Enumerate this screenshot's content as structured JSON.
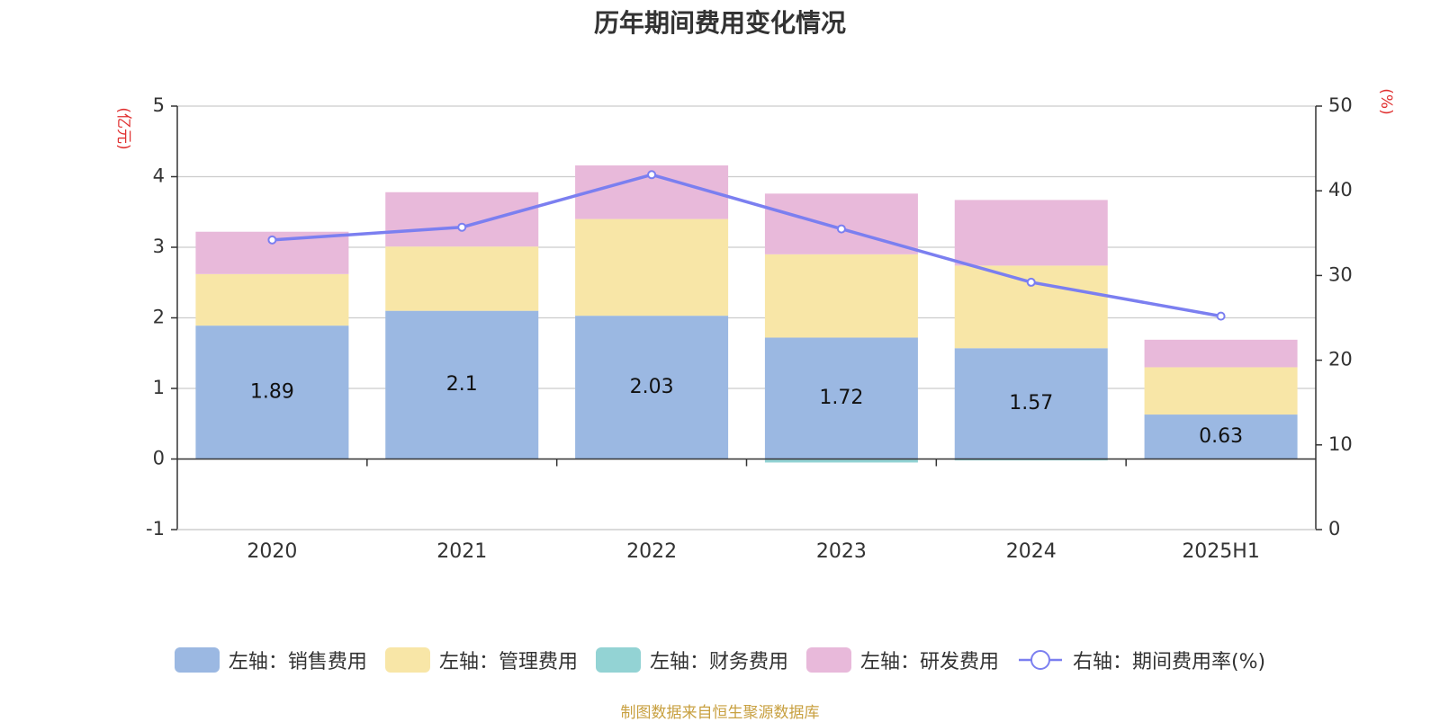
{
  "chart_data": {
    "type": "bar",
    "title": "历年期间费用变化情况",
    "categories": [
      "2020",
      "2021",
      "2022",
      "2023",
      "2024",
      "2025H1"
    ],
    "left_axis": {
      "unit_label": "(亿元)",
      "ylim": [
        -1,
        5
      ],
      "ticks": [
        "5",
        "4",
        "3",
        "2",
        "1",
        "0",
        "-1"
      ]
    },
    "right_axis": {
      "unit_label": "(%)",
      "ylim": [
        0,
        50
      ],
      "ticks": [
        "50",
        "40",
        "30",
        "20",
        "10",
        "0"
      ]
    },
    "series": [
      {
        "name": "左轴：销售费用",
        "type": "bar",
        "axis": "left",
        "color": "#9bb8e2",
        "values": [
          1.89,
          2.1,
          2.03,
          1.72,
          1.57,
          0.63
        ],
        "labels": [
          "1.89",
          "2.1",
          "2.03",
          "1.72",
          "1.57",
          "0.63"
        ]
      },
      {
        "name": "左轴：管理费用",
        "type": "bar",
        "axis": "left",
        "color": "#f8e6a7",
        "values": [
          0.73,
          0.91,
          1.37,
          1.18,
          1.17,
          0.67
        ]
      },
      {
        "name": "左轴：财务费用",
        "type": "bar",
        "axis": "left",
        "color": "#93d3d4",
        "values": [
          0.0,
          0.0,
          0.0,
          -0.05,
          -0.02,
          0.0
        ]
      },
      {
        "name": "左轴：研发费用",
        "type": "bar",
        "axis": "left",
        "color": "#e8b9da",
        "values": [
          0.6,
          0.77,
          0.76,
          0.86,
          0.93,
          0.39
        ]
      },
      {
        "name": "右轴：期间费用率(%)",
        "type": "line",
        "axis": "right",
        "color": "#7b7ff0",
        "values": [
          34.2,
          35.7,
          41.9,
          35.5,
          29.2,
          25.2
        ]
      }
    ],
    "grid": true,
    "legend_position": "bottom"
  },
  "source_note": "制图数据来自恒生聚源数据库"
}
